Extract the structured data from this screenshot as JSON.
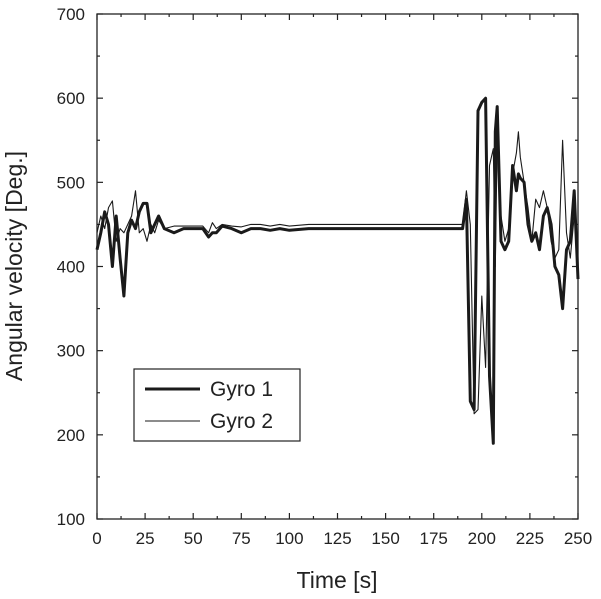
{
  "chart_data": {
    "type": "line",
    "title": "",
    "xlabel": "Time [s]",
    "ylabel": "Angular velocity [Deg.]",
    "xlim": [
      0,
      250
    ],
    "ylim": [
      100,
      700
    ],
    "xticks": [
      0,
      25,
      50,
      75,
      100,
      125,
      150,
      175,
      200,
      225,
      250
    ],
    "yticks": [
      100,
      200,
      300,
      400,
      500,
      600,
      700
    ],
    "grid": false,
    "legend_position": "lower-left",
    "series": [
      {
        "name": "Gyro 1",
        "style": "thick",
        "color": "#1a1a1a",
        "x": [
          0,
          2,
          4,
          6,
          8,
          10,
          12,
          14,
          16,
          18,
          20,
          22,
          24,
          26,
          28,
          30,
          32,
          35,
          40,
          45,
          50,
          55,
          58,
          60,
          62,
          65,
          70,
          75,
          80,
          85,
          90,
          95,
          100,
          110,
          120,
          130,
          140,
          150,
          160,
          170,
          180,
          190,
          192,
          194,
          196,
          198,
          200,
          202,
          204,
          206,
          207,
          208,
          210,
          212,
          214,
          216,
          218,
          219,
          220,
          222,
          224,
          226,
          228,
          230,
          232,
          234,
          236,
          238,
          240,
          242,
          244,
          246,
          248,
          250
        ],
        "y": [
          420,
          440,
          465,
          450,
          400,
          460,
          410,
          365,
          440,
          455,
          445,
          465,
          475,
          475,
          440,
          450,
          460,
          445,
          440,
          445,
          445,
          445,
          435,
          440,
          440,
          448,
          445,
          440,
          445,
          445,
          443,
          445,
          443,
          445,
          445,
          445,
          445,
          445,
          445,
          445,
          445,
          445,
          480,
          240,
          230,
          585,
          595,
          600,
          270,
          190,
          560,
          590,
          430,
          420,
          430,
          520,
          490,
          510,
          505,
          500,
          450,
          430,
          440,
          420,
          460,
          470,
          450,
          400,
          390,
          350,
          420,
          430,
          490,
          385
        ]
      },
      {
        "name": "Gyro 2",
        "style": "thin",
        "color": "#1a1a1a",
        "x": [
          0,
          2,
          4,
          6,
          8,
          10,
          12,
          14,
          16,
          18,
          20,
          22,
          24,
          26,
          28,
          30,
          32,
          35,
          40,
          45,
          50,
          55,
          58,
          60,
          62,
          65,
          70,
          75,
          80,
          85,
          90,
          95,
          100,
          110,
          120,
          130,
          140,
          150,
          160,
          170,
          180,
          190,
          192,
          194,
          196,
          198,
          200,
          202,
          204,
          206,
          207,
          208,
          210,
          212,
          214,
          216,
          218,
          219,
          220,
          222,
          224,
          226,
          228,
          230,
          232,
          234,
          236,
          238,
          240,
          242,
          244,
          246,
          248,
          250
        ],
        "y": [
          440,
          460,
          445,
          470,
          478,
          430,
          445,
          440,
          450,
          460,
          490,
          440,
          445,
          430,
          450,
          440,
          455,
          445,
          448,
          448,
          448,
          448,
          440,
          452,
          445,
          450,
          448,
          447,
          450,
          450,
          448,
          450,
          448,
          450,
          450,
          450,
          450,
          450,
          450,
          450,
          450,
          450,
          490,
          450,
          225,
          230,
          365,
          280,
          520,
          540,
          400,
          550,
          460,
          430,
          445,
          510,
          535,
          560,
          530,
          500,
          470,
          430,
          480,
          470,
          490,
          470,
          430,
          410,
          420,
          550,
          440,
          410,
          460,
          420
        ]
      }
    ]
  }
}
